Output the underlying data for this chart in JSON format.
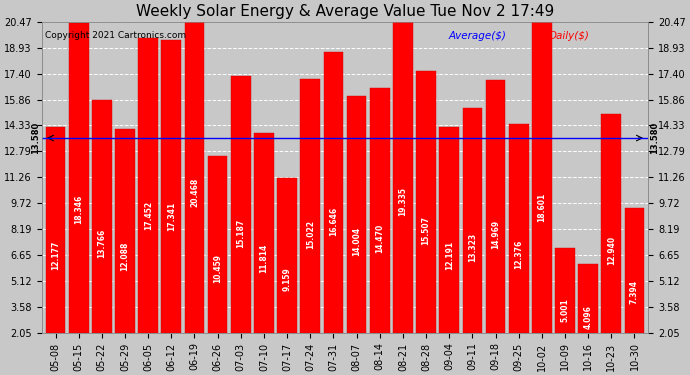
{
  "title": "Weekly Solar Energy & Average Value Tue Nov 2 17:49",
  "copyright": "Copyright 2021 Cartronics.com",
  "legend_avg": "Average($)",
  "legend_daily": "Daily($)",
  "categories": [
    "05-08",
    "05-15",
    "05-22",
    "05-29",
    "06-05",
    "06-12",
    "06-19",
    "06-26",
    "07-03",
    "07-10",
    "07-17",
    "07-24",
    "07-31",
    "08-07",
    "08-14",
    "08-21",
    "08-28",
    "09-04",
    "09-11",
    "09-18",
    "09-25",
    "10-02",
    "10-09",
    "10-16",
    "10-23",
    "10-30"
  ],
  "values": [
    12.177,
    18.346,
    13.766,
    12.088,
    17.452,
    17.341,
    20.468,
    10.459,
    15.187,
    11.814,
    9.159,
    15.022,
    16.646,
    14.004,
    14.47,
    19.335,
    15.507,
    12.191,
    13.323,
    14.969,
    12.376,
    18.601,
    5.001,
    4.096,
    12.94,
    7.394
  ],
  "average_line": 13.58,
  "ylim": [
    2.05,
    20.47
  ],
  "yticks": [
    2.05,
    3.58,
    5.12,
    6.65,
    8.19,
    9.72,
    11.26,
    12.79,
    14.33,
    15.86,
    17.4,
    18.93,
    20.47
  ],
  "bar_color": "#ff0000",
  "bar_edge_color": "#cc0000",
  "avg_line_color": "#0000ff",
  "grid_color": "#ffffff",
  "bg_color": "#c8c8c8",
  "title_fontsize": 11,
  "tick_fontsize": 7,
  "val_fontsize": 5.5
}
